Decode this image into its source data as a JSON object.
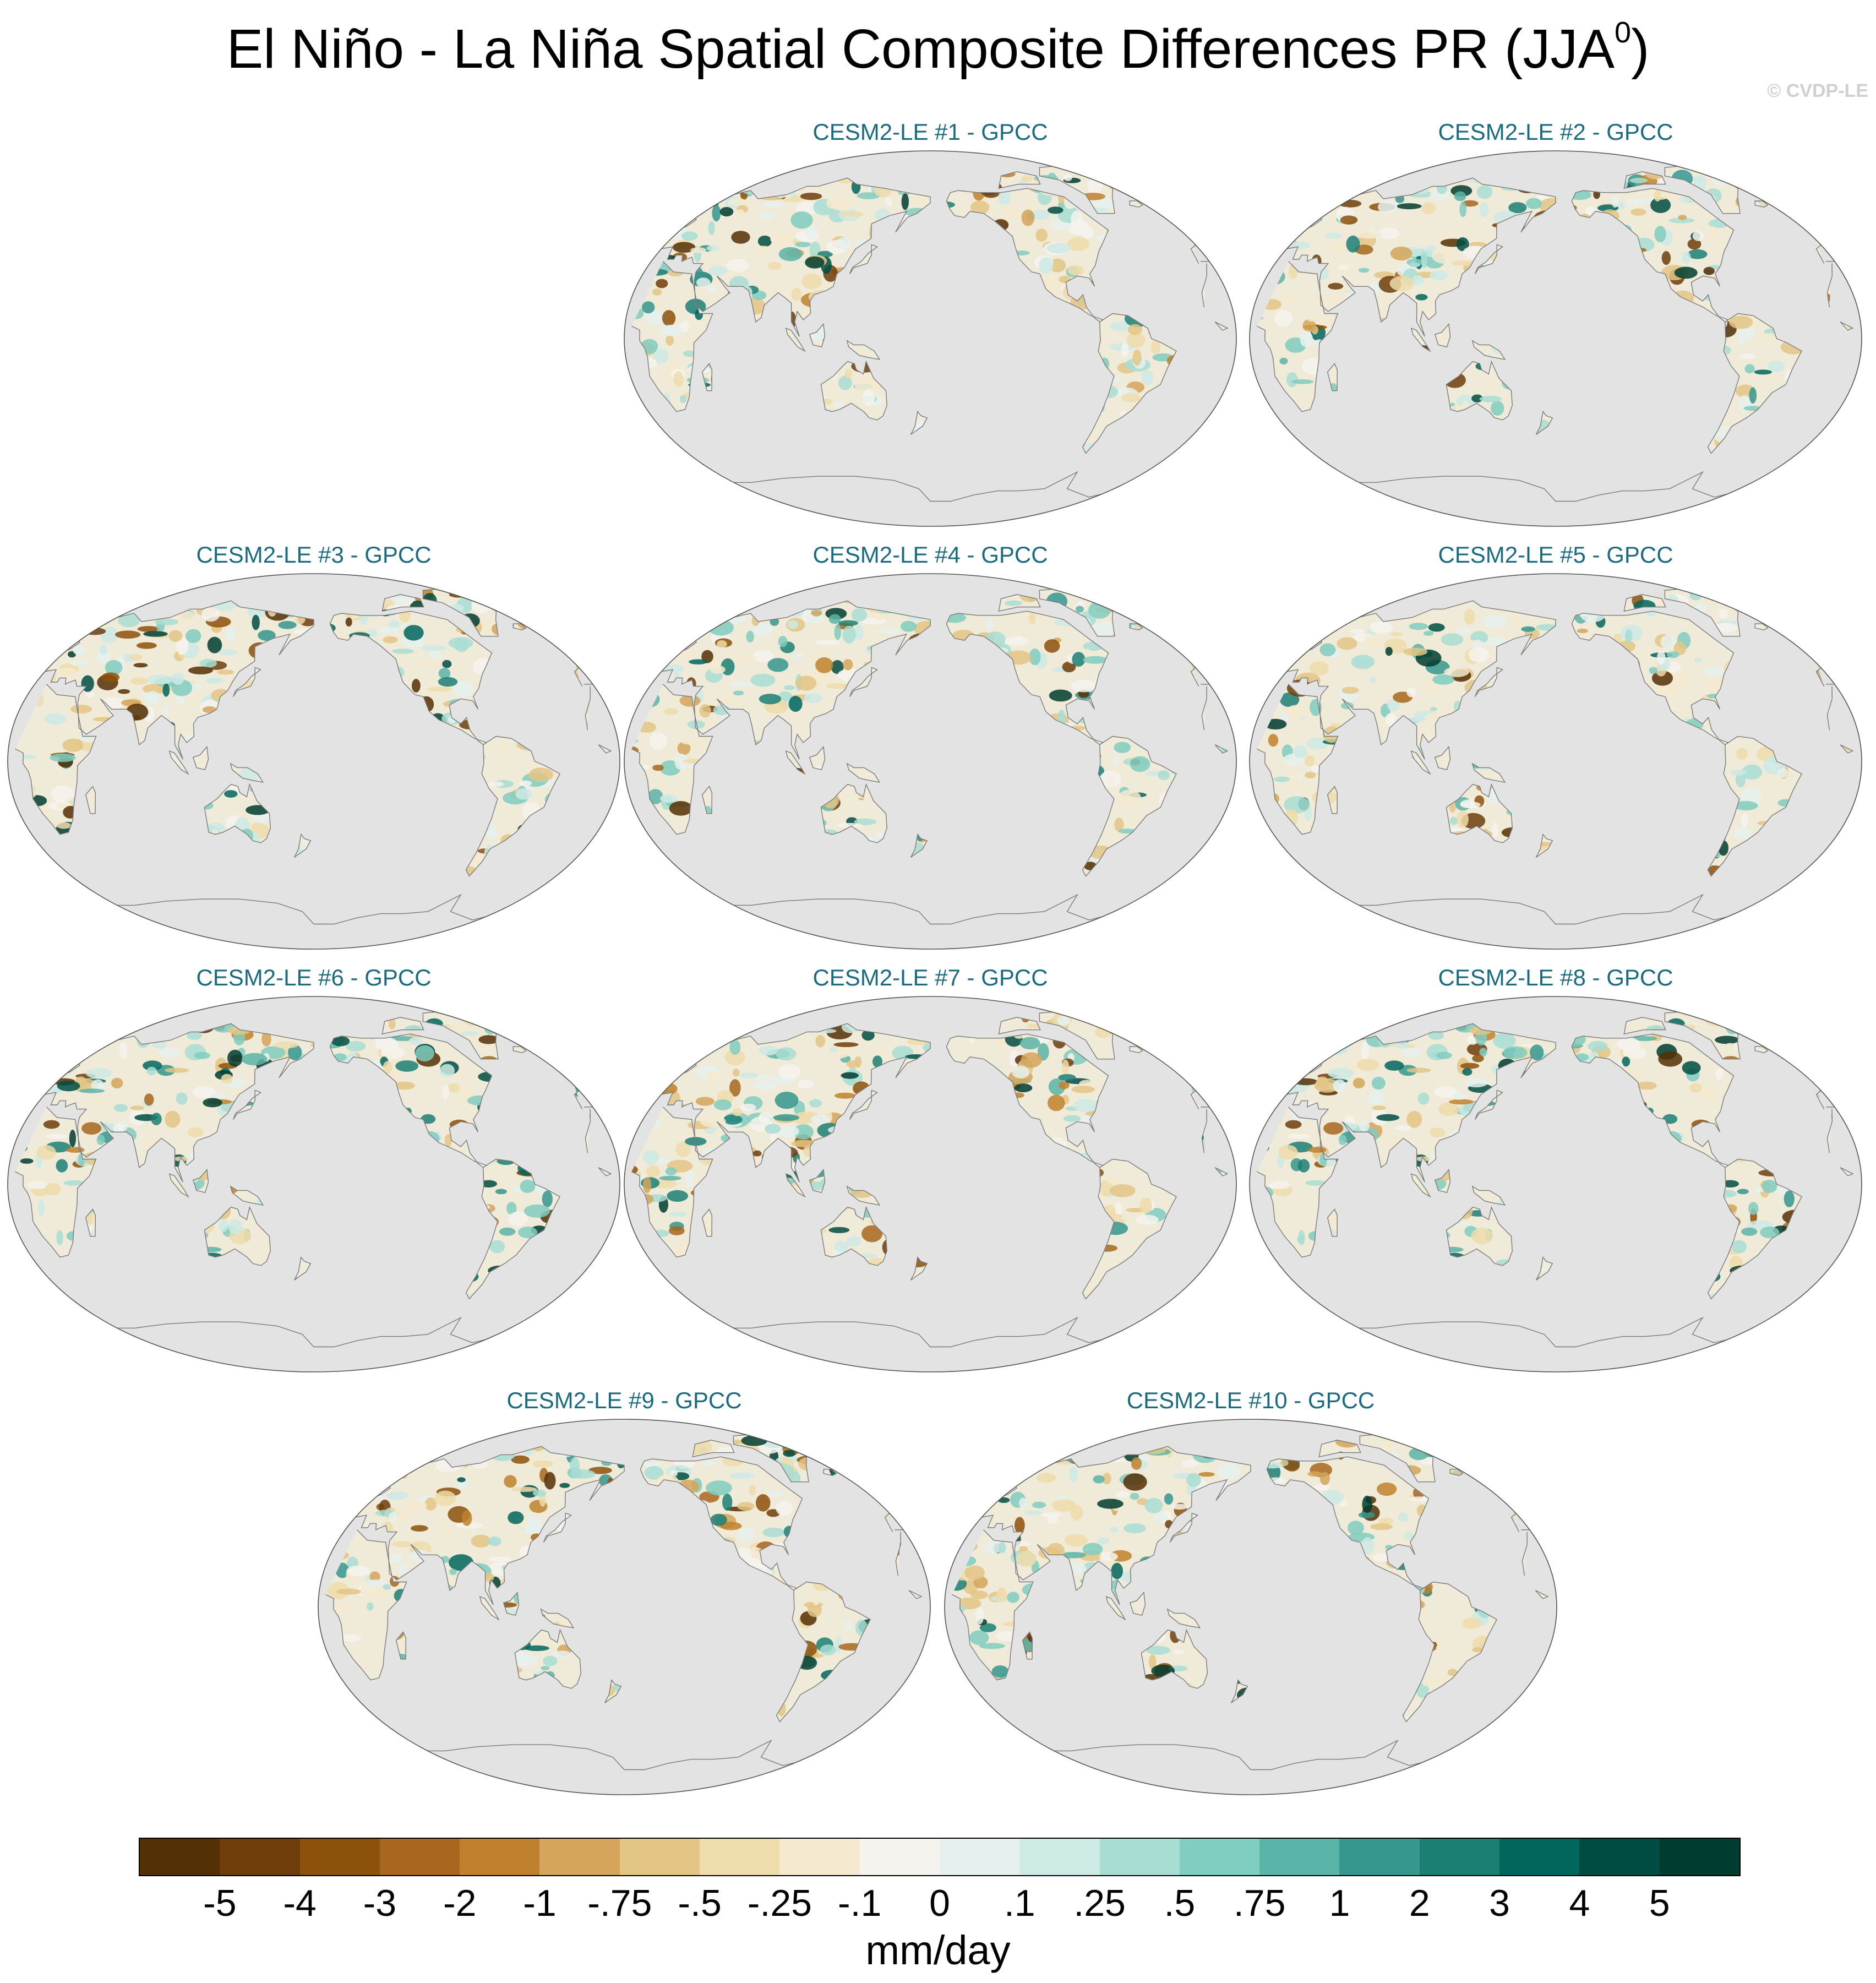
{
  "title": "El Niño - La Niña Spatial Composite Differences PR (JJA",
  "title_superscript": "0",
  "title_suffix": ")",
  "copyright": "© CVDP-LE",
  "panels": [
    {
      "label": "CESM2-LE #1 - GPCC"
    },
    {
      "label": "CESM2-LE #2 - GPCC"
    },
    {
      "label": "CESM2-LE #3 - GPCC"
    },
    {
      "label": "CESM2-LE #4 - GPCC"
    },
    {
      "label": "CESM2-LE #5 - GPCC"
    },
    {
      "label": "CESM2-LE #6 - GPCC"
    },
    {
      "label": "CESM2-LE #7 - GPCC"
    },
    {
      "label": "CESM2-LE #8 - GPCC"
    },
    {
      "label": "CESM2-LE #9 - GPCC"
    },
    {
      "label": "CESM2-LE #10 - GPCC"
    }
  ],
  "colorbar": {
    "labels": [
      "-5",
      "-4",
      "-3",
      "-2",
      "-1",
      "-.75",
      "-.5",
      "-.25",
      "-.1",
      "0",
      ".1",
      ".25",
      ".5",
      ".75",
      "1",
      "2",
      "3",
      "4",
      "5"
    ],
    "colors": [
      "#543005",
      "#6f3d0a",
      "#8c510a",
      "#a8671f",
      "#bf812d",
      "#d4a55b",
      "#e3c685",
      "#eedcaa",
      "#f5ead0",
      "#f5f3ee",
      "#e6f1ef",
      "#cdeae5",
      "#a8ddd3",
      "#80cdc1",
      "#5ab4a8",
      "#35978f",
      "#1b7f74",
      "#01665e",
      "#014c42",
      "#003c30"
    ],
    "units": "mm/day"
  },
  "map_colors": {
    "ocean": "#e3e3e3",
    "coastline": "#7a7a7a"
  }
}
